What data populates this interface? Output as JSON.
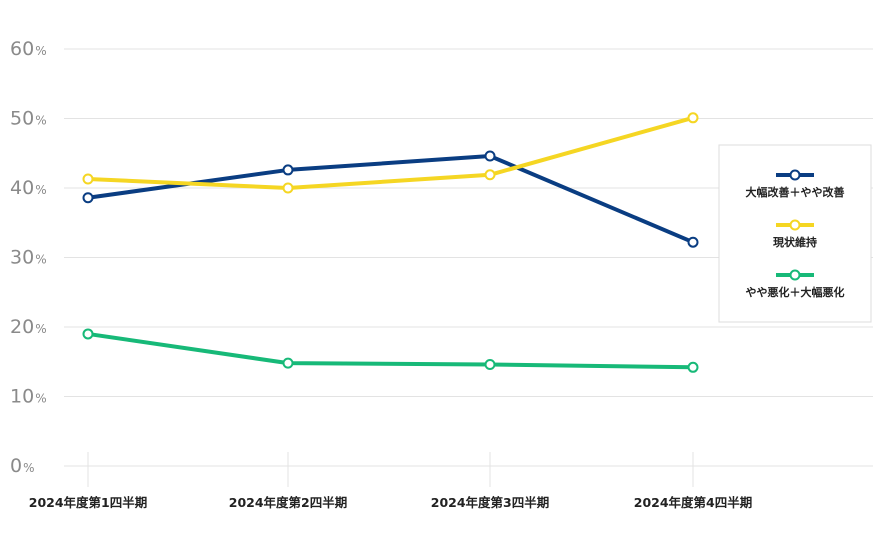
{
  "chart_data": {
    "type": "line",
    "categories": [
      "2024年度第1四半期",
      "2024年度第2四半期",
      "2024年度第3四半期",
      "2024年度第4四半期"
    ],
    "series": [
      {
        "name": "大幅改善＋やや改善",
        "values": [
          38.6,
          42.6,
          44.6,
          32.2
        ],
        "color": "#0a3d82"
      },
      {
        "name": "現状維持",
        "values": [
          41.3,
          40.0,
          41.9,
          50.1
        ],
        "color": "#f5d623"
      },
      {
        "name": "やや悪化＋大幅悪化",
        "values": [
          19.0,
          14.8,
          14.6,
          14.2
        ],
        "color": "#17b978"
      }
    ],
    "yticks": [
      0,
      10,
      20,
      30,
      40,
      50,
      60
    ],
    "y_unit": "%",
    "ylim": [
      0,
      60
    ],
    "grid": true,
    "legend_position": "right"
  }
}
